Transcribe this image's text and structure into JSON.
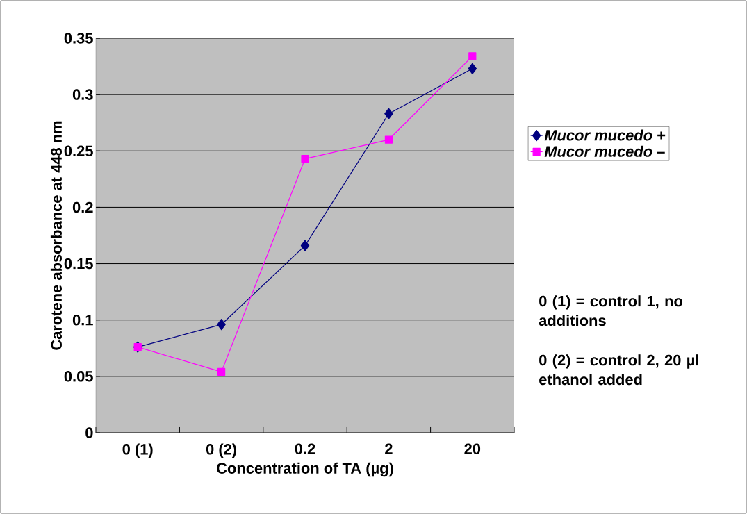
{
  "chart_data": {
    "type": "line",
    "xlabel": "Concentration of TA (µg)",
    "ylabel": "Carotene absorbance at 448 nm",
    "categories": [
      "0 (1)",
      "0 (2)",
      "0.2",
      "2",
      "20"
    ],
    "series": [
      {
        "name": "*Mucor mucedo* +",
        "color": "#000080",
        "marker": "diamond",
        "values": [
          0.076,
          0.096,
          0.166,
          0.283,
          0.323
        ]
      },
      {
        "name": "*Mucor mucedo* –",
        "color": "#ff00ff",
        "marker": "square",
        "values": [
          0.076,
          0.054,
          0.243,
          0.26,
          0.334
        ]
      }
    ],
    "ylim": [
      0,
      0.35
    ],
    "yticks": [
      0,
      0.05,
      0.1,
      0.15,
      0.2,
      0.25,
      0.3,
      0.35
    ],
    "grid": "y",
    "legend": "right",
    "line_style": "solid",
    "annotations": [
      "0 (1) = control 1, no additions",
      "0 (2) = control 2, 20 µl ethanol added"
    ]
  }
}
